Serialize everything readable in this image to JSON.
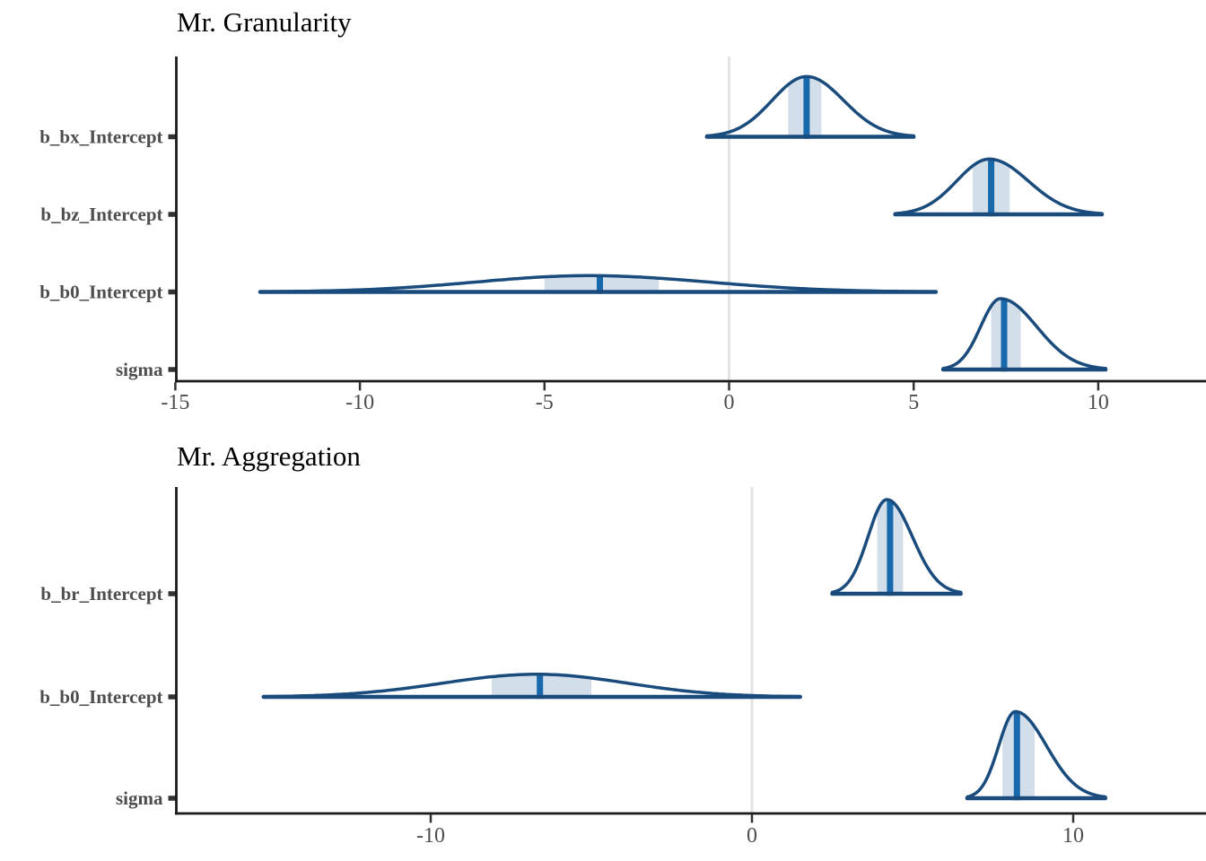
{
  "figure": {
    "background": "#ffffff",
    "kind": "posterior-halfeye-densities"
  },
  "colors": {
    "curve": "#1a4b7d",
    "median_bar": "#1868ac",
    "interval_fill": "#d2dfea",
    "gridline": "#e3e3e3",
    "axis_line": "#1a1a1a",
    "tick_mark": "#333333",
    "tick_label": "#4d4d4d",
    "y_label": "#4d4d4d",
    "title": "#000000"
  },
  "chart_data": [
    {
      "type": "area",
      "subtype": "density-halfeye",
      "title": "Mr. Granularity",
      "xlabel": "",
      "ylabel": "",
      "legend": "none",
      "grid": "reference-line-only",
      "reference_line_x": 0,
      "xlim": [
        -15.0,
        12.9
      ],
      "x_ticks": [
        -15,
        -10,
        -5,
        0,
        5,
        10
      ],
      "x_tick_labels": [
        "-15",
        "-10",
        "-5",
        "0",
        "5",
        "10"
      ],
      "parameters": [
        {
          "label": "b_bx_Intercept",
          "range": [
            -0.6,
            5.0
          ],
          "median": 2.1,
          "interval66": [
            1.6,
            2.5
          ],
          "mode": 2.1,
          "rel_height": 0.85
        },
        {
          "label": "b_bz_Intercept",
          "range": [
            4.5,
            10.1
          ],
          "median": 7.1,
          "interval66": [
            6.6,
            7.6
          ],
          "mode": 7.05,
          "rel_height": 0.78
        },
        {
          "label": "b_b0_Intercept",
          "range": [
            -12.7,
            5.6
          ],
          "median": -3.5,
          "interval66": [
            -5.0,
            -1.9
          ],
          "mode": -3.8,
          "rel_height": 0.23
        },
        {
          "label": "sigma",
          "range": [
            5.8,
            10.2
          ],
          "median": 7.45,
          "interval66": [
            7.1,
            7.9
          ],
          "mode": 7.35,
          "rel_height": 1.0
        }
      ]
    },
    {
      "type": "area",
      "subtype": "density-halfeye",
      "title": "Mr. Aggregation",
      "xlabel": "",
      "ylabel": "",
      "legend": "none",
      "grid": "reference-line-only",
      "reference_line_x": 0,
      "xlim": [
        -17.9,
        14.1
      ],
      "x_ticks": [
        -10,
        0,
        10
      ],
      "x_tick_labels": [
        "-10",
        "0",
        "10"
      ],
      "parameters": [
        {
          "label": "b_br_Intercept",
          "range": [
            2.5,
            6.5
          ],
          "median": 4.3,
          "interval66": [
            3.9,
            4.7
          ],
          "mode": 4.2,
          "rel_height": 1.0
        },
        {
          "label": "b_b0_Intercept",
          "range": [
            -15.2,
            1.5
          ],
          "median": -6.6,
          "interval66": [
            -8.1,
            -5.0
          ],
          "mode": -6.7,
          "rel_height": 0.24
        },
        {
          "label": "sigma",
          "range": [
            6.7,
            11.0
          ],
          "median": 8.25,
          "interval66": [
            7.8,
            8.8
          ],
          "mode": 8.2,
          "rel_height": 0.92
        }
      ]
    }
  ]
}
